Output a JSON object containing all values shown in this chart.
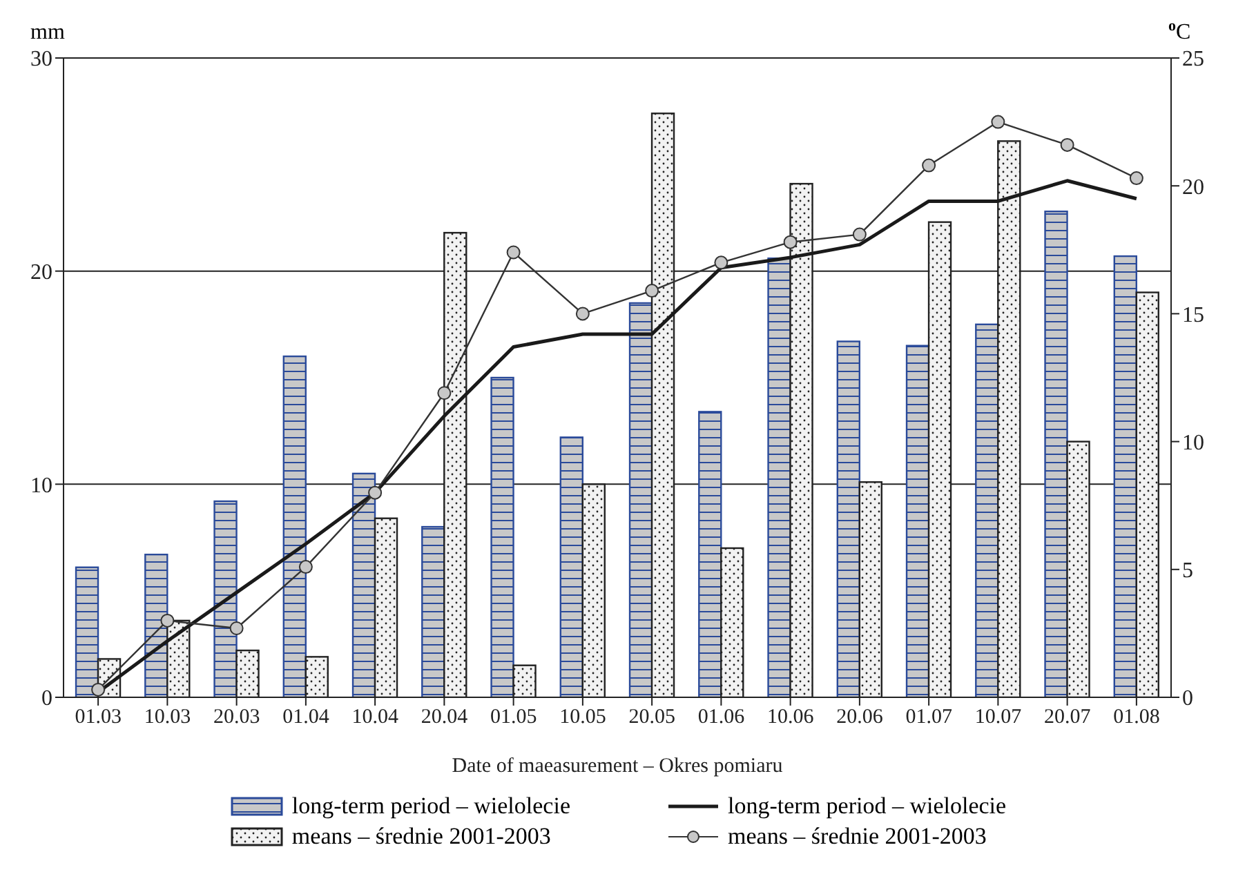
{
  "chart_data": {
    "type": "bar",
    "xlabel": "Date of maeasurement – Okres pomiaru",
    "ylabel": "mm",
    "y2label": "$^{o}$C",
    "categories": [
      "01.03",
      "10.03",
      "20.03",
      "01.04",
      "10.04",
      "20.04",
      "01.05",
      "10.05",
      "20.05",
      "01.06",
      "10.06",
      "20.06",
      "01.07",
      "10.07",
      "20.07",
      "01.08"
    ],
    "series": [
      {
        "name": "long-term period – wielolecie",
        "color": "#c8c8c8",
        "values": [
          6.1,
          6.7,
          9.2,
          16.0,
          10.5,
          8.0,
          15.0,
          12.2,
          18.5,
          13.4,
          20.6,
          16.7,
          16.5,
          17.5,
          22.8,
          20.7
        ]
      },
      {
        "name": "means – średnie  2001-2003",
        "color": "#f2f2f2",
        "values": [
          1.8,
          3.6,
          2.2,
          1.9,
          8.4,
          21.8,
          1.5,
          10.0,
          27.4,
          7.0,
          24.1,
          10.1,
          22.3,
          26.1,
          12.0,
          19.0
        ]
      },
      {
        "name": "long-term period – wielolecie",
        "type": "line",
        "axis": "y2",
        "color": "#1a1a1a",
        "marker": "none",
        "values": [
          0.2,
          2.2,
          4.1,
          6.0,
          8.0,
          11.0,
          13.7,
          14.2,
          14.2,
          16.8,
          17.2,
          17.7,
          19.4,
          19.4,
          20.2,
          19.5
        ]
      },
      {
        "name": "means – średnie 2001-2003",
        "type": "line",
        "axis": "y2",
        "color": "#333333",
        "marker": "circle",
        "values": [
          0.3,
          3.0,
          2.7,
          5.1,
          8.0,
          11.9,
          17.4,
          15.0,
          15.9,
          17.0,
          17.8,
          18.1,
          20.8,
          22.5,
          21.6,
          20.3
        ]
      }
    ],
    "ylim": [
      0,
      30
    ],
    "yticks": [
      0,
      10,
      20,
      30
    ],
    "y2lim": [
      0,
      25
    ],
    "y2ticks": [
      0,
      5,
      10,
      15,
      20,
      25
    ],
    "grid": "y",
    "legend": "bottom"
  }
}
